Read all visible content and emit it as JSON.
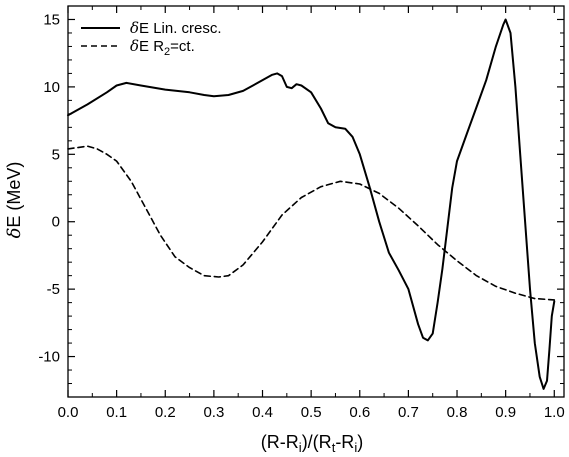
{
  "chart_data": {
    "type": "line",
    "xlabel_parts": {
      "a": "(R-R",
      "a_sub": "i",
      "b": ")/(R",
      "b_sub": "t",
      "c": "-R",
      "c_sub": "i",
      "d": ")"
    },
    "ylabel_parts": {
      "delta": "δ",
      "rest": "E (MeV)"
    },
    "xlim": [
      0.0,
      1.02
    ],
    "ylim": [
      -13,
      16
    ],
    "xticks": [
      0.0,
      0.1,
      0.2,
      0.3,
      0.4,
      0.5,
      0.6,
      0.7,
      0.8,
      0.9,
      1.0
    ],
    "xtick_labels": [
      "0.0",
      "0.1",
      "0.2",
      "0.3",
      "0.4",
      "0.5",
      "0.6",
      "0.7",
      "0.8",
      "0.9",
      "1.0"
    ],
    "yticks": [
      -10,
      -5,
      0,
      5,
      10,
      15
    ],
    "ytick_labels": [
      "-10",
      "-5",
      "0",
      "5",
      "10",
      "15"
    ],
    "legend_position": "top-left",
    "grid": false,
    "series": [
      {
        "legend_delta": "δ",
        "legend_text": "E Lin. cresc.",
        "legend_sub": "",
        "legend_tail": "",
        "style": "solid",
        "color": "#000000",
        "points": [
          [
            0.0,
            7.9
          ],
          [
            0.04,
            8.7
          ],
          [
            0.08,
            9.6
          ],
          [
            0.1,
            10.1
          ],
          [
            0.12,
            10.3
          ],
          [
            0.15,
            10.1
          ],
          [
            0.2,
            9.8
          ],
          [
            0.25,
            9.6
          ],
          [
            0.28,
            9.4
          ],
          [
            0.3,
            9.3
          ],
          [
            0.33,
            9.4
          ],
          [
            0.36,
            9.7
          ],
          [
            0.39,
            10.3
          ],
          [
            0.42,
            10.9
          ],
          [
            0.43,
            11.0
          ],
          [
            0.44,
            10.8
          ],
          [
            0.45,
            10.0
          ],
          [
            0.46,
            9.9
          ],
          [
            0.47,
            10.2
          ],
          [
            0.48,
            10.1
          ],
          [
            0.5,
            9.6
          ],
          [
            0.52,
            8.4
          ],
          [
            0.535,
            7.3
          ],
          [
            0.55,
            7.0
          ],
          [
            0.57,
            6.9
          ],
          [
            0.585,
            6.3
          ],
          [
            0.6,
            5.0
          ],
          [
            0.62,
            2.6
          ],
          [
            0.64,
            0.0
          ],
          [
            0.66,
            -2.3
          ],
          [
            0.68,
            -3.6
          ],
          [
            0.7,
            -5.0
          ],
          [
            0.72,
            -7.6
          ],
          [
            0.73,
            -8.6
          ],
          [
            0.74,
            -8.8
          ],
          [
            0.75,
            -8.3
          ],
          [
            0.76,
            -6.0
          ],
          [
            0.77,
            -3.5
          ],
          [
            0.78,
            -0.5
          ],
          [
            0.79,
            2.5
          ],
          [
            0.8,
            4.5
          ],
          [
            0.82,
            6.5
          ],
          [
            0.84,
            8.5
          ],
          [
            0.86,
            10.5
          ],
          [
            0.88,
            13.0
          ],
          [
            0.895,
            14.6
          ],
          [
            0.9,
            15.0
          ],
          [
            0.91,
            14.0
          ],
          [
            0.92,
            10.0
          ],
          [
            0.93,
            5.0
          ],
          [
            0.94,
            0.0
          ],
          [
            0.95,
            -5.0
          ],
          [
            0.96,
            -9.0
          ],
          [
            0.97,
            -11.5
          ],
          [
            0.978,
            -12.4
          ],
          [
            0.985,
            -11.8
          ],
          [
            0.99,
            -9.5
          ],
          [
            0.995,
            -7.0
          ],
          [
            1.0,
            -5.9
          ]
        ]
      },
      {
        "legend_delta": "δ",
        "legend_text": "E R",
        "legend_sub": "2",
        "legend_tail": "=ct.",
        "style": "dashed",
        "color": "#000000",
        "points": [
          [
            0.0,
            5.4
          ],
          [
            0.02,
            5.5
          ],
          [
            0.04,
            5.6
          ],
          [
            0.06,
            5.4
          ],
          [
            0.08,
            5.0
          ],
          [
            0.1,
            4.5
          ],
          [
            0.13,
            3.0
          ],
          [
            0.16,
            1.0
          ],
          [
            0.19,
            -1.0
          ],
          [
            0.22,
            -2.6
          ],
          [
            0.25,
            -3.4
          ],
          [
            0.28,
            -4.0
          ],
          [
            0.31,
            -4.1
          ],
          [
            0.33,
            -4.0
          ],
          [
            0.36,
            -3.2
          ],
          [
            0.4,
            -1.5
          ],
          [
            0.44,
            0.5
          ],
          [
            0.48,
            1.8
          ],
          [
            0.52,
            2.6
          ],
          [
            0.56,
            3.0
          ],
          [
            0.6,
            2.8
          ],
          [
            0.64,
            2.1
          ],
          [
            0.68,
            1.0
          ],
          [
            0.72,
            -0.3
          ],
          [
            0.76,
            -1.7
          ],
          [
            0.8,
            -2.9
          ],
          [
            0.84,
            -4.0
          ],
          [
            0.88,
            -4.8
          ],
          [
            0.92,
            -5.3
          ],
          [
            0.96,
            -5.7
          ],
          [
            1.0,
            -5.8
          ]
        ]
      }
    ]
  }
}
